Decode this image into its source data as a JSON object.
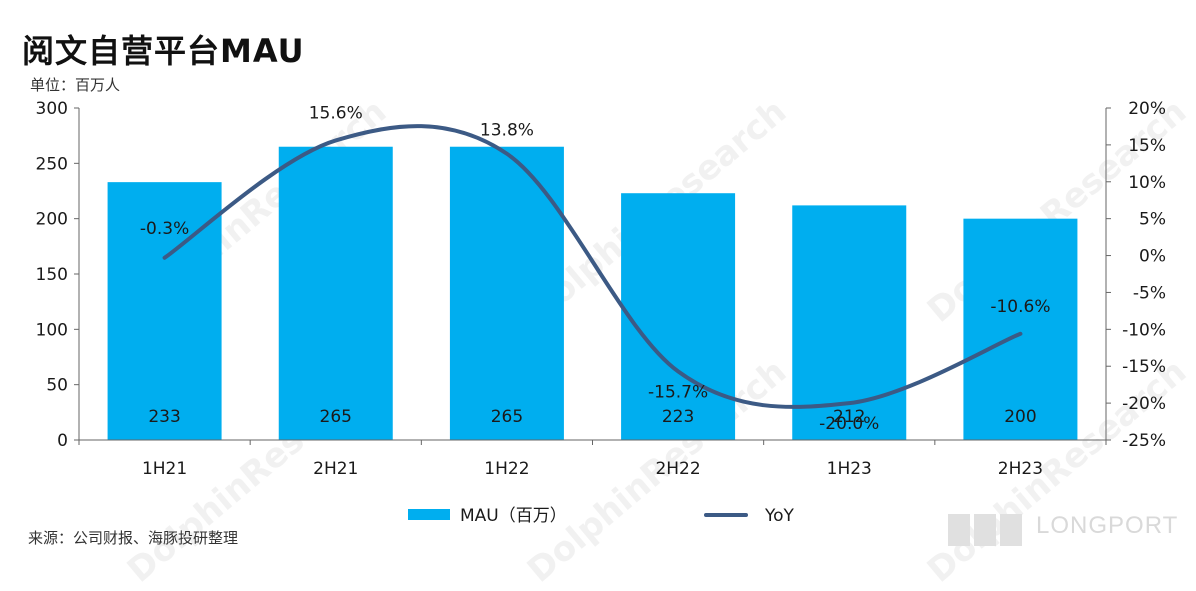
{
  "title": "阅文自营平台MAU",
  "unit": "单位：百万人",
  "source": "来源：公司财报、海豚投研整理",
  "watermark": {
    "text": "DolphinResearch",
    "cn": "海豚投研"
  },
  "brand": {
    "text": "LONGPORT"
  },
  "colors": {
    "bar": "#00aeef",
    "line": "#3c5a85",
    "axis": "#666666"
  },
  "chart_data": {
    "type": "bar",
    "categories": [
      "1H21",
      "2H21",
      "1H22",
      "2H22",
      "1H23",
      "2H23"
    ],
    "series": [
      {
        "name": "MAU（百万）",
        "type": "bar",
        "axis": "left",
        "values": [
          233,
          265,
          265,
          223,
          212,
          200
        ],
        "labels": [
          "233",
          "265",
          "265",
          "223",
          "212",
          "200"
        ]
      },
      {
        "name": "YoY",
        "type": "line",
        "axis": "right",
        "values": [
          -0.3,
          15.6,
          13.8,
          -15.7,
          -20.0,
          -10.6
        ],
        "labels": [
          "-0.3%",
          "15.6%",
          "13.8%",
          "-15.7%",
          "-20.0%",
          "-10.6%"
        ]
      }
    ],
    "left_axis": {
      "min": 0,
      "max": 300,
      "ticks": [
        "0",
        "50",
        "100",
        "150",
        "200",
        "250",
        "300"
      ]
    },
    "right_axis": {
      "min": -25,
      "max": 20,
      "ticks": [
        "-25%",
        "-20%",
        "-15%",
        "-10%",
        "-5%",
        "0%",
        "5%",
        "10%",
        "15%",
        "20%"
      ]
    },
    "legend": {
      "position": "bottom"
    },
    "grid": false
  }
}
